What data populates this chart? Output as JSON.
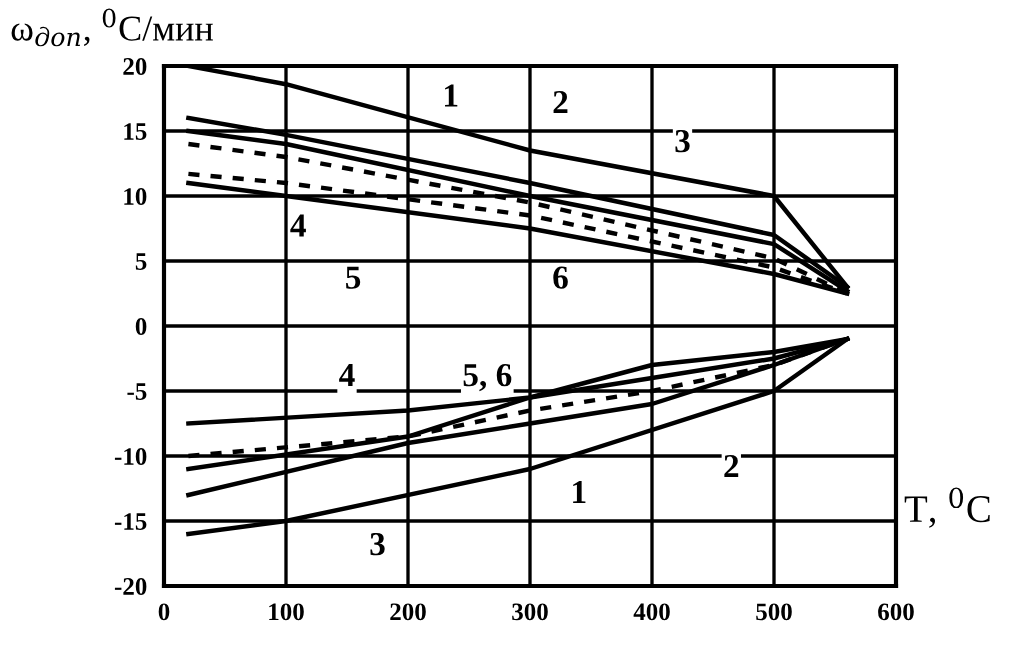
{
  "chart_data": {
    "type": "line",
    "ylabel": "ω$_{доп}$, $^{0}$C/мин",
    "xlabel": "T, $^{0}$C",
    "xlim": [
      0,
      600
    ],
    "xticks": [
      0,
      100,
      200,
      300,
      400,
      500,
      600
    ],
    "ylim": [
      -20,
      20
    ],
    "yticks": [
      -20,
      -15,
      -10,
      -5,
      0,
      5,
      10,
      15,
      20
    ],
    "grid": true,
    "series": [
      {
        "color": "#000000",
        "x": [
          20,
          100,
          300,
          500,
          560
        ],
        "values": [
          20,
          18.6,
          13.5,
          10,
          3
        ]
      },
      {
        "color": "#000000",
        "x": [
          20,
          100,
          300,
          500,
          560
        ],
        "values": [
          16,
          14.7,
          11,
          7,
          3
        ]
      },
      {
        "color": "#000000",
        "x": [
          20,
          100,
          300,
          500,
          560
        ],
        "values": [
          15,
          14,
          10,
          6.3,
          2.7
        ]
      },
      {
        "color": "#000000",
        "line_style": "dashed",
        "x": [
          20,
          100,
          300,
          500,
          560
        ],
        "values": [
          14,
          13,
          9.5,
          5.2,
          2.5
        ]
      },
      {
        "color": "#000000",
        "line_style": "dashed",
        "x": [
          20,
          100,
          300,
          500,
          560
        ],
        "values": [
          11.7,
          11,
          8.5,
          4.5,
          2.5
        ]
      },
      {
        "color": "#000000",
        "x": [
          20,
          100,
          300,
          500,
          560
        ],
        "values": [
          11,
          10,
          7.5,
          4,
          2.5
        ]
      },
      {
        "color": "#000000",
        "x": [
          20,
          100,
          300,
          500,
          560
        ],
        "values": [
          -16,
          -15,
          -11,
          -5,
          -1
        ]
      },
      {
        "color": "#000000",
        "x": [
          20,
          200,
          300,
          400,
          500,
          560
        ],
        "values": [
          -13,
          -9,
          -7.5,
          -6,
          -3,
          -1
        ]
      },
      {
        "color": "#000000",
        "x": [
          20,
          200,
          300,
          400,
          500,
          560
        ],
        "values": [
          -11,
          -8.5,
          -5.5,
          -3,
          -2,
          -1
        ]
      },
      {
        "color": "#000000",
        "line_style": "dashed",
        "x": [
          20,
          200,
          300,
          400,
          500,
          560
        ],
        "values": [
          -10,
          -8.5,
          -6.5,
          -5,
          -3,
          -1
        ]
      },
      {
        "color": "#000000",
        "x": [
          20,
          200,
          300,
          400,
          500,
          560
        ],
        "values": [
          -7.5,
          -6.5,
          -5.5,
          -4,
          -2.5,
          -1
        ]
      }
    ],
    "annotations": [
      {
        "text": "1",
        "x": 235,
        "y": 17.5
      },
      {
        "text": "2",
        "x": 325,
        "y": 17
      },
      {
        "text": "3",
        "x": 425,
        "y": 14
      },
      {
        "text": "4",
        "x": 110,
        "y": 7.5
      },
      {
        "text": "5",
        "x": 155,
        "y": 3.5
      },
      {
        "text": "6",
        "x": 325,
        "y": 3.5
      },
      {
        "text": "1",
        "x": 340,
        "y": -13
      },
      {
        "text": "2",
        "x": 465,
        "y": -11
      },
      {
        "text": "3",
        "x": 175,
        "y": -17
      },
      {
        "text": "4",
        "x": 150,
        "y": -4
      },
      {
        "text": "5, 6",
        "x": 265,
        "y": -4
      }
    ]
  }
}
